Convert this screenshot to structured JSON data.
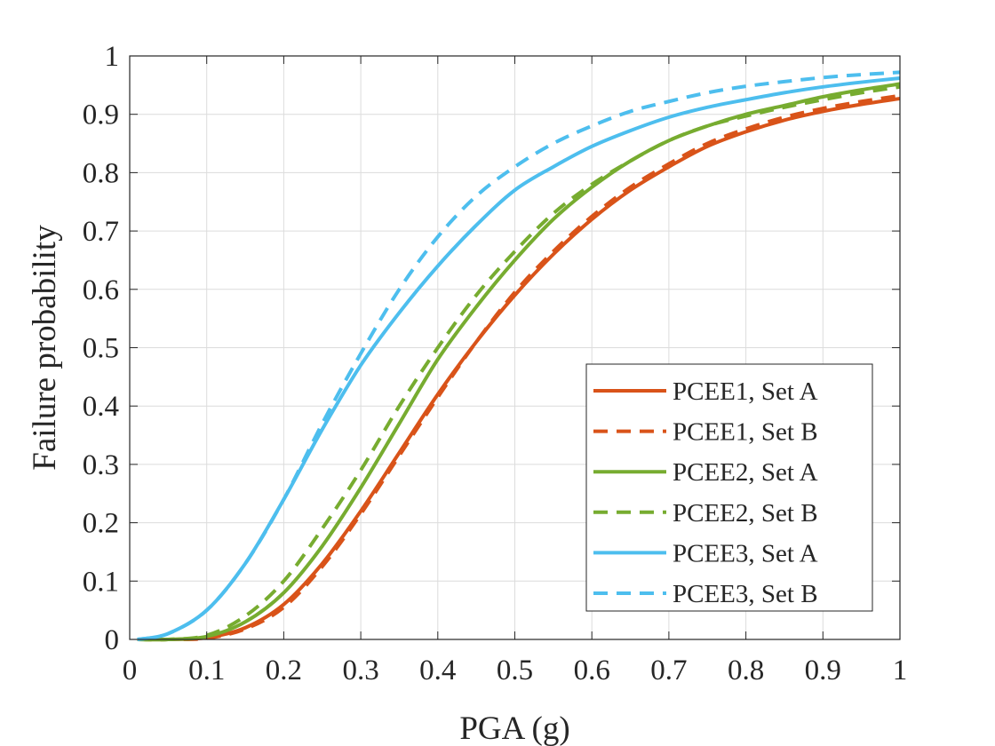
{
  "chart_data": {
    "type": "line",
    "title": "",
    "xlabel": "PGA (g)",
    "ylabel": "Failure probability",
    "xlim": [
      0,
      1
    ],
    "ylim": [
      0,
      1
    ],
    "xticks": [
      0,
      0.1,
      0.2,
      0.3,
      0.4,
      0.5,
      0.6,
      0.7,
      0.8,
      0.9,
      1
    ],
    "xtick_labels": [
      "0",
      "0.1",
      "0.2",
      "0.3",
      "0.4",
      "0.5",
      "0.6",
      "0.7",
      "0.8",
      "0.9",
      "1"
    ],
    "yticks": [
      0,
      0.1,
      0.2,
      0.3,
      0.4,
      0.5,
      0.6,
      0.7,
      0.8,
      0.9,
      1
    ],
    "ytick_labels": [
      "0",
      "0.1",
      "0.2",
      "0.3",
      "0.4",
      "0.5",
      "0.6",
      "0.7",
      "0.8",
      "0.9",
      "1"
    ],
    "grid": true,
    "legend_position": "bottom-right",
    "x": [
      0.01,
      0.05,
      0.1,
      0.15,
      0.2,
      0.25,
      0.3,
      0.35,
      0.4,
      0.45,
      0.5,
      0.55,
      0.6,
      0.65,
      0.7,
      0.75,
      0.8,
      0.85,
      0.9,
      0.95,
      1.0
    ],
    "series": [
      {
        "name": "PCEE1, Set A",
        "color": "#D95319",
        "dash": "solid",
        "values": [
          0,
          0,
          0.003,
          0.02,
          0.06,
          0.13,
          0.22,
          0.32,
          0.42,
          0.51,
          0.59,
          0.66,
          0.72,
          0.77,
          0.81,
          0.845,
          0.87,
          0.89,
          0.905,
          0.917,
          0.927
        ]
      },
      {
        "name": "PCEE1, Set B",
        "color": "#D95319",
        "dash": "dashed",
        "values": [
          0,
          0,
          0.002,
          0.018,
          0.055,
          0.125,
          0.215,
          0.315,
          0.415,
          0.51,
          0.595,
          0.665,
          0.725,
          0.775,
          0.815,
          0.85,
          0.875,
          0.895,
          0.91,
          0.922,
          0.932
        ]
      },
      {
        "name": "PCEE2, Set A",
        "color": "#77AC30",
        "dash": "solid",
        "values": [
          0,
          0,
          0.005,
          0.03,
          0.08,
          0.16,
          0.26,
          0.37,
          0.48,
          0.57,
          0.65,
          0.72,
          0.775,
          0.82,
          0.855,
          0.88,
          0.9,
          0.915,
          0.93,
          0.942,
          0.952
        ]
      },
      {
        "name": "PCEE2, Set B",
        "color": "#77AC30",
        "dash": "dashed",
        "values": [
          0,
          0,
          0.007,
          0.04,
          0.1,
          0.19,
          0.29,
          0.4,
          0.5,
          0.59,
          0.665,
          0.73,
          0.78,
          0.82,
          0.855,
          0.88,
          0.897,
          0.912,
          0.925,
          0.937,
          0.947
        ]
      },
      {
        "name": "PCEE3, Set A",
        "color": "#4DBEEE",
        "dash": "solid",
        "values": [
          0,
          0.01,
          0.05,
          0.13,
          0.24,
          0.36,
          0.47,
          0.56,
          0.64,
          0.71,
          0.77,
          0.81,
          0.845,
          0.872,
          0.895,
          0.912,
          0.925,
          0.937,
          0.947,
          0.955,
          0.962
        ]
      },
      {
        "name": "PCEE3, Set B",
        "color": "#4DBEEE",
        "dash": "dashed",
        "values": [
          0,
          0.01,
          0.05,
          0.13,
          0.24,
          0.37,
          0.49,
          0.6,
          0.69,
          0.76,
          0.81,
          0.85,
          0.88,
          0.905,
          0.922,
          0.937,
          0.948,
          0.956,
          0.963,
          0.968,
          0.972
        ]
      }
    ]
  }
}
